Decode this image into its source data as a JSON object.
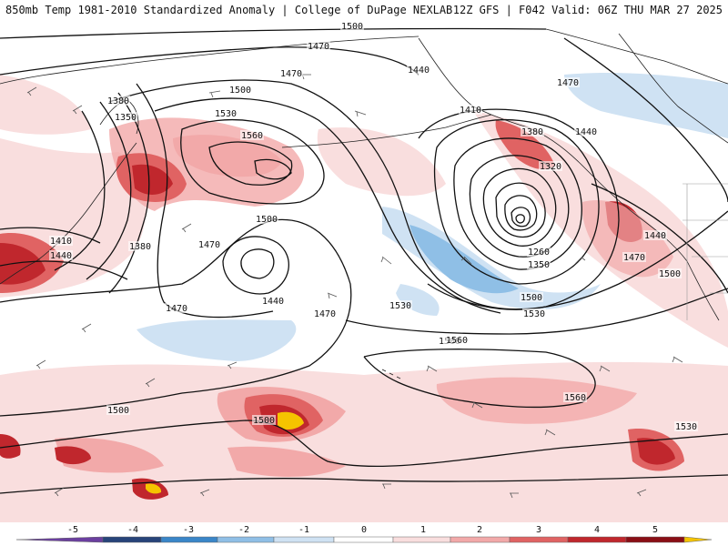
{
  "header": {
    "left_title": "850mb Temp 1981-2010 Standardized Anomaly | College of DuPage NEXLAB",
    "right_title": "12Z GFS | F042 Valid: 06Z THU MAR 27 2025"
  },
  "colors": {
    "neg5": "#6b3fa0",
    "neg4": "#27447a",
    "neg3": "#3a86c8",
    "neg2": "#8fbfe6",
    "neg1": "#cfe2f3",
    "zero": "#ffffff",
    "pos1": "#f9dede",
    "pos2": "#f2a9a9",
    "pos3": "#e06363",
    "pos4": "#c0272d",
    "pos5": "#8a0e15",
    "pos6": "#f5c400"
  },
  "contour_labels": [
    {
      "text": "1500"
    },
    {
      "text": "1470"
    },
    {
      "text": "1470"
    },
    {
      "text": "1440"
    },
    {
      "text": "1470"
    },
    {
      "text": "1500"
    },
    {
      "text": "1380"
    },
    {
      "text": "1350"
    },
    {
      "text": "1530"
    },
    {
      "text": "1560"
    },
    {
      "text": "1410"
    },
    {
      "text": "1380"
    },
    {
      "text": "1440"
    },
    {
      "text": "1320"
    },
    {
      "text": "1500"
    },
    {
      "text": "1470"
    },
    {
      "text": "1380"
    },
    {
      "text": "1410"
    },
    {
      "text": "1440"
    },
    {
      "text": "1440"
    },
    {
      "text": "1470"
    },
    {
      "text": "1470"
    },
    {
      "text": "1530"
    },
    {
      "text": "1500"
    },
    {
      "text": "1260"
    },
    {
      "text": "1350"
    },
    {
      "text": "1500"
    },
    {
      "text": "1530"
    },
    {
      "text": "1560"
    },
    {
      "text": "1560"
    },
    {
      "text": "1500"
    },
    {
      "text": "1500"
    },
    {
      "text": "1440"
    },
    {
      "text": "1470"
    },
    {
      "text": "1500"
    },
    {
      "text": "1530"
    }
  ],
  "colorbar": {
    "ticks": [
      "-5",
      "-4",
      "-3",
      "-2",
      "-1",
      "0",
      "1",
      "2",
      "3",
      "4",
      "5"
    ]
  }
}
